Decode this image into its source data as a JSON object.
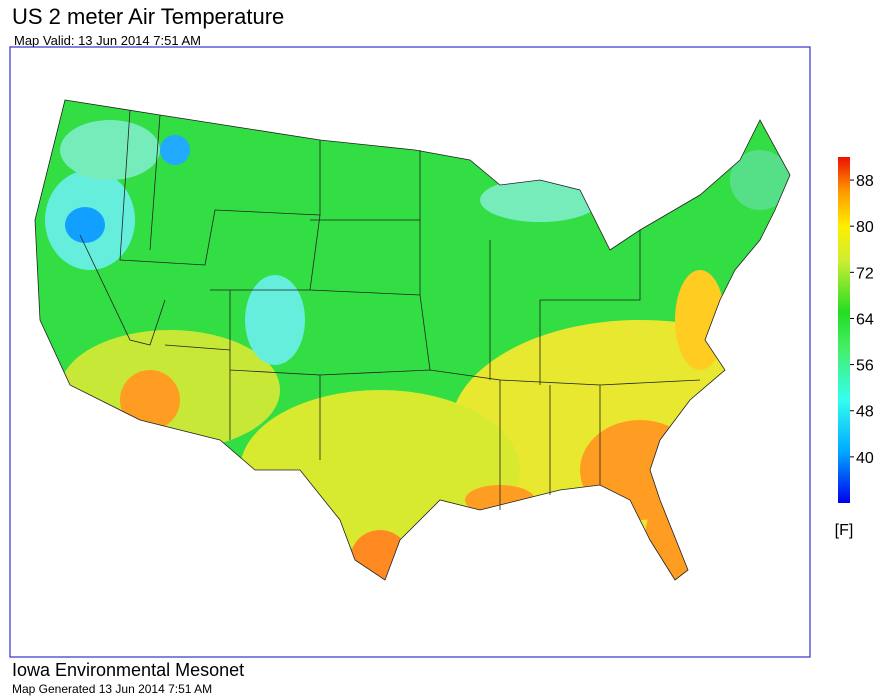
{
  "header": {
    "title": "US 2 meter Air Temperature",
    "subtitle": "Map Valid: 13 Jun 2014 7:51 AM"
  },
  "legend": {
    "ticks": [
      88,
      80,
      72,
      64,
      56,
      48,
      40
    ],
    "range": [
      32,
      92
    ],
    "unit": "[F]"
  },
  "footer": {
    "organization": "Iowa Environmental Mesonet",
    "generated": "Map Generated 13 Jun 2014 7:51 AM"
  }
}
